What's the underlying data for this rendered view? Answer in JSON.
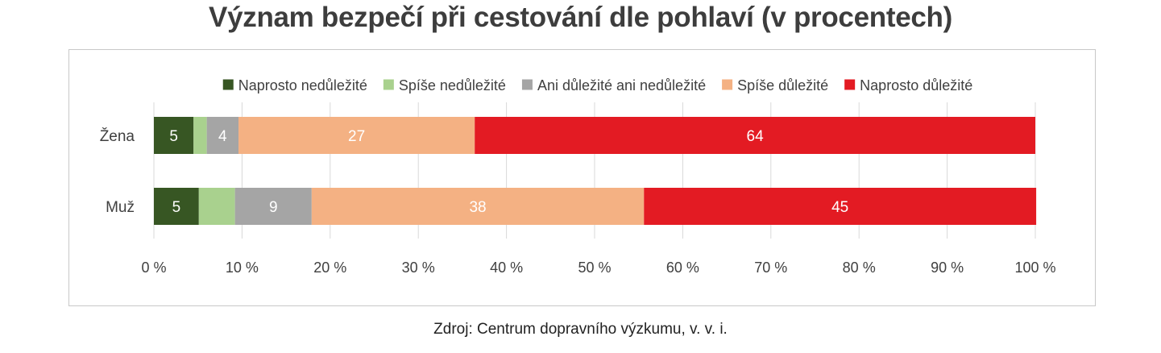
{
  "title": "Význam bezpečí při cestování dle pohlaví (v procentech)",
  "source": "Zdroj: Centrum dopravního výzkumu, v. v. i.",
  "chart_data": {
    "type": "bar",
    "orientation": "horizontal",
    "stacked": true,
    "categories": [
      "Žena",
      "Muž"
    ],
    "series": [
      {
        "name": "Naprosto nedůležité",
        "color": "#375623",
        "values": [
          4.5,
          5.1
        ],
        "labels": [
          "5",
          "5"
        ]
      },
      {
        "name": "Spíše nedůležité",
        "color": "#a9d18e",
        "values": [
          1.5,
          4.1
        ],
        "labels": [
          "",
          ""
        ]
      },
      {
        "name": "Ani důležité ani nedůležité",
        "color": "#a5a5a5",
        "values": [
          3.6,
          8.7
        ],
        "labels": [
          "4",
          "9"
        ]
      },
      {
        "name": "Spíše důležité",
        "color": "#f4b183",
        "values": [
          26.8,
          37.7
        ],
        "labels": [
          "27",
          "38"
        ]
      },
      {
        "name": "Naprosto důležité",
        "color": "#e31b23",
        "values": [
          63.6,
          44.5
        ],
        "labels": [
          "64",
          "45"
        ]
      }
    ],
    "xlim": [
      0,
      100
    ],
    "xticks": [
      "0 %",
      "10 %",
      "20 %",
      "30 %",
      "40 %",
      "50 %",
      "60 %",
      "70 %",
      "80 %",
      "90 %",
      "100 %"
    ],
    "legend": "top",
    "grid": true
  }
}
